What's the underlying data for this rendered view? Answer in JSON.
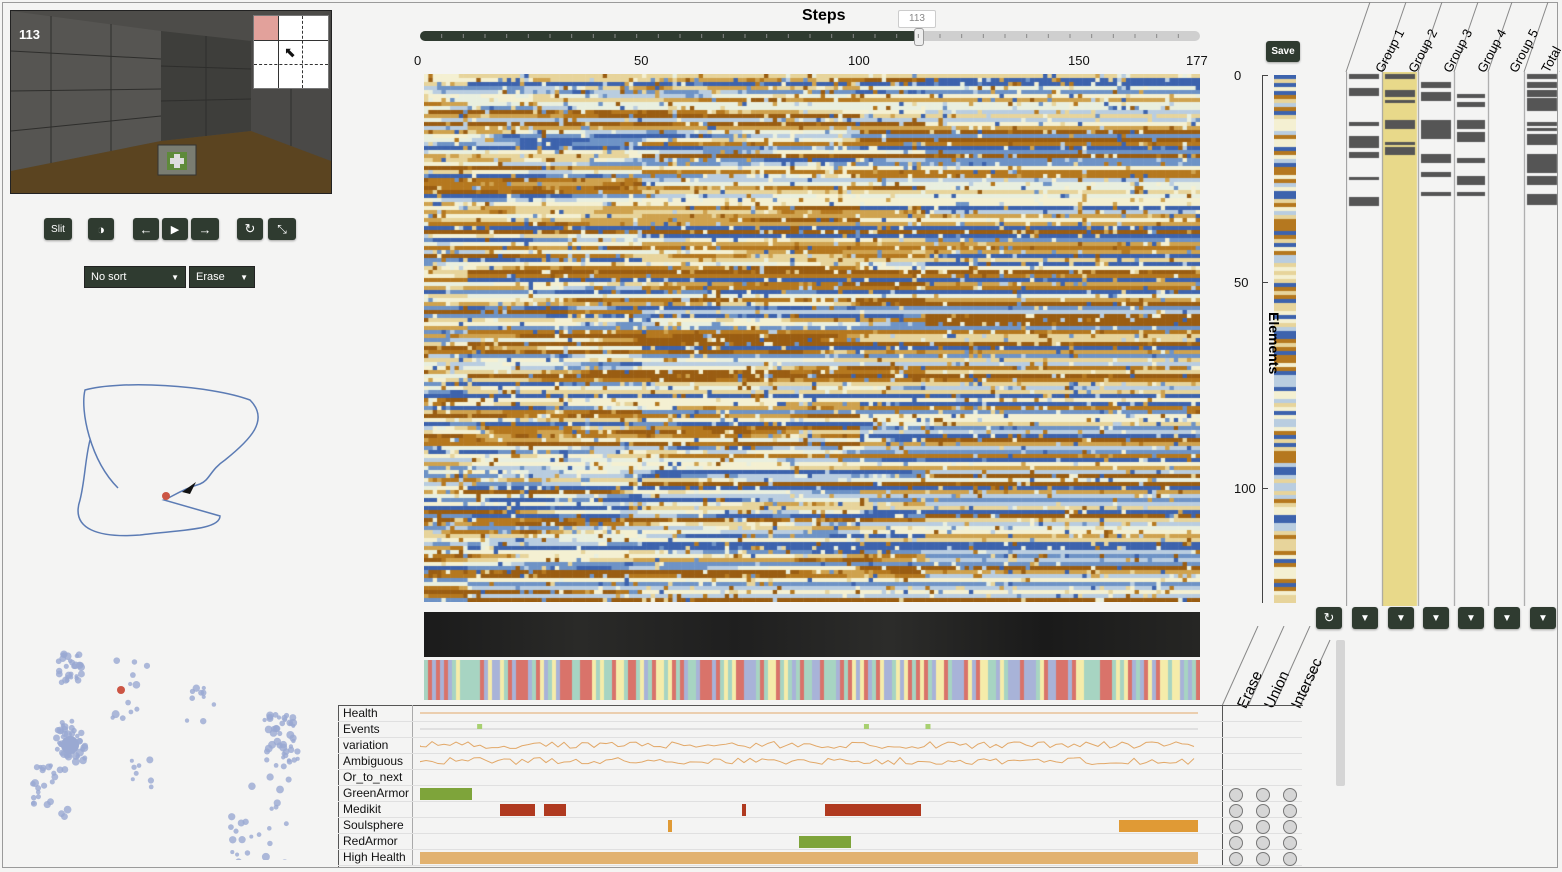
{
  "step_counter": "113",
  "steps_title": "Steps",
  "slider_tooltip": "113",
  "step_ticks": [
    "0",
    "50",
    "100",
    "150",
    "177"
  ],
  "slider": {
    "min": 0,
    "max": 177,
    "value": 113
  },
  "controls": {
    "slit_label": "Slit"
  },
  "sort_select": {
    "value": "No sort"
  },
  "mode_select": {
    "value": "Erase"
  },
  "save_label": "Save",
  "elements_label": "Elements",
  "element_ticks": [
    "0",
    "50",
    "100"
  ],
  "groups": [
    "Group 1",
    "Group 2",
    "Group 3",
    "Group 4",
    "Group 5",
    "Total"
  ],
  "set_ops": [
    "Erase",
    "Union",
    "Intersec"
  ],
  "features": [
    "Health",
    "Events",
    "variation",
    "Ambiguous",
    "Or_to_next",
    "GreenArmor",
    "Medikit",
    "Soulsphere",
    "RedArmor",
    "High Health"
  ],
  "colors": {
    "accent": "#2f3b30",
    "blue": "#4a6fb0",
    "brown": "#b5781f",
    "group_highlight": "#e8d98a",
    "trajectory": "#5b7bb4",
    "marker": "#cc5544"
  },
  "icons": [
    "contrast-icon",
    "arrow-left-icon",
    "play-icon",
    "arrow-right-icon",
    "refresh-icon",
    "collapse-icon",
    "filter-icon",
    "medikit-icon"
  ]
}
